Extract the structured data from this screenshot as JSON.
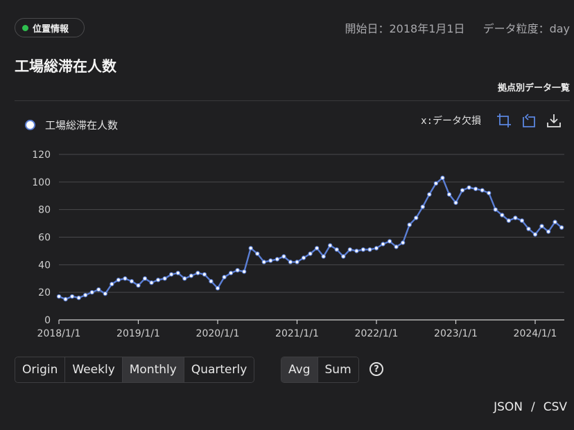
{
  "badge": {
    "label": "位置情報",
    "dot_color": "#2fbf4f"
  },
  "meta": {
    "start_date": "開始日：2018年1月1日",
    "granularity": "データ粒度：day"
  },
  "title": "工場総滞在人数",
  "breakdown_link": "拠点別データ一覧",
  "legend": {
    "label": "工場総滞在人数"
  },
  "toolbar": {
    "missing_label": "x:データ欠損",
    "icons": [
      "crop-icon",
      "restore-icon",
      "download-icon"
    ]
  },
  "period_options": [
    "Origin",
    "Weekly",
    "Monthly",
    "Quarterly"
  ],
  "period_selected": "Monthly",
  "agg_options": [
    "Avg",
    "Sum"
  ],
  "agg_selected": "Avg",
  "help_label": "?",
  "export": {
    "json": "JSON",
    "sep": "/",
    "csv": "CSV"
  },
  "colors": {
    "series": "#5b7fd6",
    "grid": "#4a4a4d",
    "axis": "#d0d0d0"
  },
  "chart_data": {
    "type": "line",
    "title": "",
    "xlabel": "",
    "ylabel": "",
    "ylim": [
      0,
      120
    ],
    "yticks": [
      0,
      20,
      40,
      60,
      80,
      100,
      120
    ],
    "xtick_labels": [
      "2018/1/1",
      "2019/1/1",
      "2020/1/1",
      "2021/1/1",
      "2022/1/1",
      "2023/1/1",
      "2024/1/1"
    ],
    "x_start": "2018/1/1",
    "x_step": "month",
    "grid": true,
    "series": [
      {
        "name": "工場総滞在人数",
        "color": "#5b7fd6",
        "values": [
          17,
          15,
          17,
          16,
          18,
          20,
          22,
          19,
          26,
          29,
          30,
          28,
          25,
          30,
          27,
          29,
          30,
          33,
          34,
          30,
          32,
          34,
          33,
          28,
          23,
          31,
          34,
          36,
          35,
          52,
          48,
          42,
          43,
          44,
          46,
          42,
          42,
          45,
          48,
          52,
          46,
          54,
          51,
          46,
          51,
          50,
          51,
          51,
          52,
          55,
          57,
          53,
          56,
          69,
          74,
          82,
          91,
          99,
          103,
          91,
          85,
          94,
          96,
          95,
          94,
          92,
          80,
          76,
          72,
          74,
          72,
          66,
          62,
          68,
          64,
          71,
          67
        ]
      }
    ]
  }
}
